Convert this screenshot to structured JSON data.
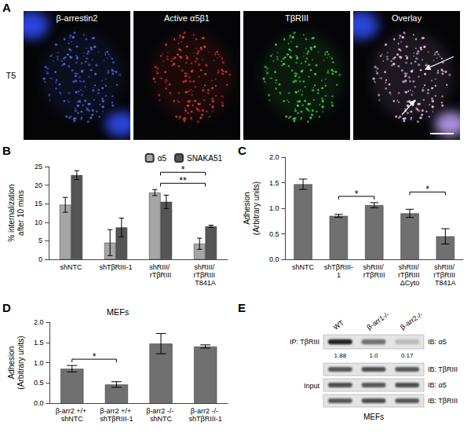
{
  "panel_a": {
    "panel": "A",
    "row_label": "T5",
    "images": [
      {
        "title": "β-arrestin2",
        "color": "#4a66e6"
      },
      {
        "title": "Active α5β1",
        "color": "#e2392a"
      },
      {
        "title": "TβRIII",
        "color": "#3fcf3f"
      },
      {
        "title": "Overlay",
        "color": "#ecbcec"
      }
    ]
  },
  "chart_data": [
    {
      "panel": "B",
      "type": "bar",
      "categories": [
        "shNTC",
        "shTβRIII-1",
        "shRIII/ rTβRIII",
        "shRIII/ rTβRIII T841A"
      ],
      "series": [
        {
          "name": "α5",
          "color": "#a6a6a6",
          "values": [
            14.7,
            4.5,
            18.0,
            4.2
          ],
          "errors": [
            2.0,
            3.5,
            0.8,
            1.5
          ]
        },
        {
          "name": "SNAKA51",
          "color": "#555555",
          "values": [
            22.7,
            8.6,
            15.5,
            8.9
          ],
          "errors": [
            1.2,
            2.5,
            1.8,
            0.3
          ]
        }
      ],
      "y_label": "% internalization after 10 mins",
      "ylim": [
        0,
        25
      ],
      "yticks": [
        0,
        5,
        10,
        15,
        20,
        25
      ],
      "grid": false,
      "legend": "top-right",
      "annotations": [
        {
          "text": "**",
          "from": "shRIII/ rTβRIII",
          "to": "shRIII/ rTβRIII T841A"
        },
        {
          "text": "*",
          "from": "shRIII/ rTβRIII",
          "to": "shRIII/ rTβRIII T841A"
        }
      ]
    },
    {
      "panel": "C",
      "type": "bar",
      "categories": [
        "shNTC",
        "shTβRIII-1",
        "shRIII/ rTβRIII",
        "shRIII/ rTβRIII ΔCyto",
        "shRIII/ rTβRIII T841A"
      ],
      "values": [
        1.47,
        0.85,
        1.06,
        0.9,
        0.45
      ],
      "errors": [
        0.1,
        0.03,
        0.05,
        0.08,
        0.15
      ],
      "color": "#707070",
      "y_label": "Adhesion (Arbitrary units)",
      "ylim": [
        0,
        2
      ],
      "yticks": [
        {
          "value": 0,
          "label": "0.0"
        },
        {
          "value": 0.5,
          "label": "0.5"
        },
        {
          "value": 1,
          "label": "1.0"
        },
        {
          "value": 1.5,
          "label": "1.5"
        },
        {
          "value": 2,
          "label": "2.0"
        }
      ],
      "grid": false,
      "annotations": [
        {
          "text": "*",
          "from": "shTβRIII-1",
          "to": "shRIII/ rTβRIII"
        },
        {
          "text": "*",
          "from": "shRIII/ rTβRIII ΔCyto",
          "to": "shRIII/ rTβRIII T841A"
        }
      ]
    },
    {
      "panel": "D",
      "type": "bar",
      "title": "MEFs",
      "categories": [
        "β-arr2 +/+ shNTC",
        "β-arr2 +/+ shTβRIII-1",
        "β-arr2 -/- shNTC",
        "β-arr2 -/- shTβRIII-1"
      ],
      "values": [
        0.85,
        0.46,
        1.47,
        1.4
      ],
      "errors": [
        0.08,
        0.07,
        0.25,
        0.04
      ],
      "color": "#707070",
      "y_label": "Adhesion (Arbitrary units)",
      "ylim": [
        0,
        2
      ],
      "yticks": [
        {
          "value": 0,
          "label": "0.0"
        },
        {
          "value": 0.5,
          "label": "0.5"
        },
        {
          "value": 1,
          "label": "1.0"
        },
        {
          "value": 1.5,
          "label": "1.5"
        },
        {
          "value": 2,
          "label": "2.0"
        }
      ],
      "grid": false,
      "annotations": [
        {
          "text": "*",
          "from": "β-arr2 +/+ shNTC",
          "to": "β-arr2 +/+ shTβRIII-1"
        }
      ]
    }
  ],
  "panel_e": {
    "panel": "E",
    "columns": [
      "WT",
      "β-arr1-/-",
      "β-arr2-/-"
    ],
    "ip_label": "IP: TβRIII",
    "ip_blot": "IB: α5",
    "quantification": [
      "1.88",
      "1.0",
      "0.17"
    ],
    "input_label": "Input",
    "input_blots": [
      "IB: TβRIII",
      "IB: α5",
      "IB: TβRIII"
    ],
    "cell_type": "MEFs"
  }
}
